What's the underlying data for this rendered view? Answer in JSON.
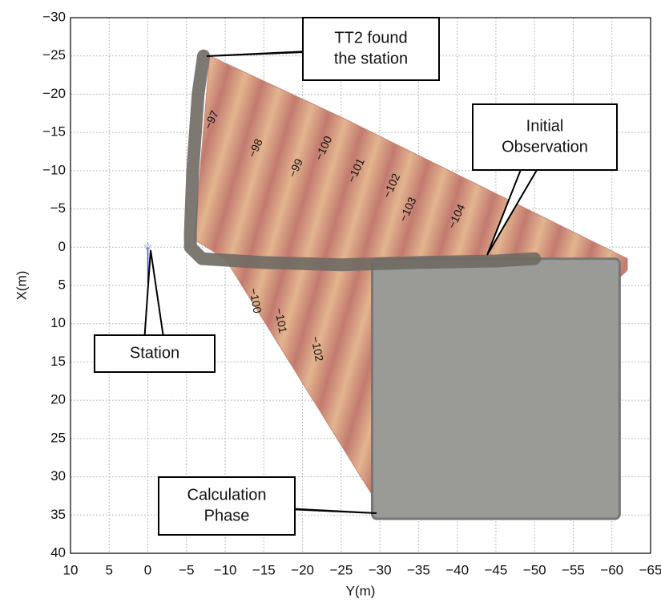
{
  "chart_data": {
    "type": "map",
    "x_label": "Y(m)",
    "y_label": "X(m)",
    "xlim": [
      10,
      -65
    ],
    "xticks": [
      10,
      5,
      0,
      {
        "value": -5,
        "label": "−5"
      },
      {
        "value": -10,
        "label": "−10"
      },
      {
        "value": -15,
        "label": "−15"
      },
      {
        "value": -20,
        "label": "−20"
      },
      {
        "value": -25,
        "label": "−25"
      },
      {
        "value": -30,
        "label": "−30"
      },
      {
        "value": -35,
        "label": "−35"
      },
      {
        "value": -40,
        "label": "−40"
      },
      {
        "value": -45,
        "label": "−45"
      },
      {
        "value": -50,
        "label": "−50"
      },
      {
        "value": -55,
        "label": "−55"
      },
      {
        "value": -60,
        "label": "−60"
      },
      {
        "value": -65,
        "label": "−65"
      }
    ],
    "ylim": [
      -30,
      40
    ],
    "yticks": [
      {
        "value": -30,
        "label": "−30"
      },
      {
        "value": -25,
        "label": "−25"
      },
      {
        "value": -20,
        "label": "−20"
      },
      {
        "value": -15,
        "label": "−15"
      },
      {
        "value": -10,
        "label": "−10"
      },
      {
        "value": -5,
        "label": "−5"
      },
      0,
      5,
      10,
      15,
      20,
      25,
      30,
      35,
      40
    ],
    "grid": true,
    "survey_area": {
      "x": [
        -8,
        -25,
        -62,
        -62,
        -30,
        -10,
        -6
      ],
      "y": [
        -25,
        -17,
        1.5,
        3,
        34,
        1.5,
        -1
      ],
      "color": "#c98577"
    },
    "contour_labels": [
      {
        "value": -97,
        "label": "−97",
        "x": -8.3,
        "y": -16.6
      },
      {
        "value": -98,
        "label": "−98",
        "x": -14,
        "y": -12.9
      },
      {
        "value": -99,
        "label": "−99",
        "x": -19.2,
        "y": -10.3
      },
      {
        "value": -100,
        "label": "−100",
        "x": -22.8,
        "y": -12.9
      },
      {
        "value": -101,
        "label": "−101",
        "x": -27,
        "y": -10
      },
      {
        "value": -102,
        "label": "−102",
        "x": -31.6,
        "y": -8
      },
      {
        "value": -103,
        "label": "−103",
        "x": -33.7,
        "y": -4.9
      },
      {
        "value": -104,
        "label": "−104",
        "x": -40,
        "y": -4
      },
      {
        "value": -100,
        "label": "−100",
        "x": -13.8,
        "y": 7
      },
      {
        "value": -101,
        "label": "−101",
        "x": -17.1,
        "y": 9.6
      },
      {
        "value": -102,
        "label": "−102",
        "x": -21.8,
        "y": 13.3
      }
    ],
    "mosaic": {
      "x": [
        -29,
        -61
      ],
      "y": [
        1.5,
        35.5
      ],
      "color": "#9a9a96"
    },
    "track": {
      "x": [
        -7.2,
        -6.5,
        -5.8,
        -5.5,
        -5.5,
        -7,
        -15,
        -25,
        -35,
        -45,
        -50
      ],
      "y": [
        -25,
        -20,
        -10,
        -2,
        0,
        1.5,
        2,
        2.3,
        2,
        1.8,
        1.5
      ],
      "color": "#6f6a63"
    },
    "station": {
      "x": 0,
      "y": 0,
      "color": "#3b49d8"
    },
    "annotations": [
      [
        "TT2 found",
        "the station"
      ],
      [
        "Initial",
        "Observation"
      ],
      [
        "Station"
      ],
      [
        "Calculation",
        "Phase"
      ]
    ]
  }
}
